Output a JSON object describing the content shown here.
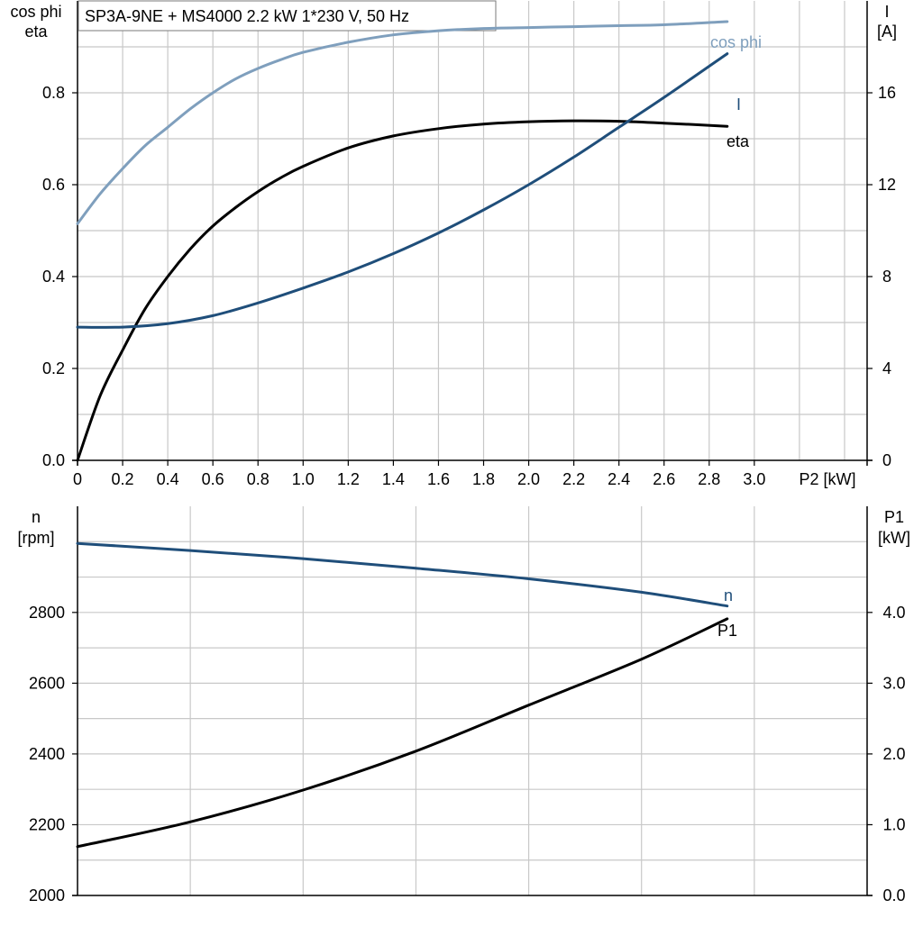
{
  "chart_data": [
    {
      "type": "line",
      "title": "SP3A-9NE + MS4000   2.2 kW   1*230 V, 50 Hz",
      "xlabel": "P2 [kW]",
      "ylabel_left": [
        "cos phi",
        "eta"
      ],
      "ylabel_right": [
        "I",
        "[A]"
      ],
      "xlim": [
        0,
        3.5
      ],
      "xticks": [
        0,
        0.2,
        0.4,
        0.6,
        0.8,
        1.0,
        1.2,
        1.4,
        1.6,
        1.8,
        2.0,
        2.2,
        2.4,
        2.6,
        2.8,
        3.0
      ],
      "xtick_labels": [
        "0",
        "0.2",
        "0.4",
        "0.6",
        "0.8",
        "1.0",
        "1.2",
        "1.4",
        "1.6",
        "1.8",
        "2.0",
        "2.2",
        "2.4",
        "2.6",
        "2.8",
        "3.0"
      ],
      "ylim_left": [
        0,
        1.0
      ],
      "yticks_left": [
        0.0,
        0.2,
        0.4,
        0.6,
        0.8
      ],
      "ytick_labels_left": [
        "0.0",
        "0.2",
        "0.4",
        "0.6",
        "0.8"
      ],
      "ylim_right": [
        0,
        20
      ],
      "yticks_right": [
        0,
        4,
        8,
        12,
        16
      ],
      "ytick_labels_right": [
        "0",
        "4",
        "8",
        "12",
        "16"
      ],
      "grid": true,
      "series": [
        {
          "name": "cos phi",
          "axis": "left",
          "color": "#7f9fbd",
          "points": [
            [
              0,
              0.515
            ],
            [
              0.1,
              0.58
            ],
            [
              0.2,
              0.635
            ],
            [
              0.3,
              0.685
            ],
            [
              0.4,
              0.725
            ],
            [
              0.5,
              0.765
            ],
            [
              0.6,
              0.8
            ],
            [
              0.7,
              0.83
            ],
            [
              0.8,
              0.853
            ],
            [
              0.9,
              0.872
            ],
            [
              1.0,
              0.888
            ],
            [
              1.2,
              0.91
            ],
            [
              1.4,
              0.926
            ],
            [
              1.6,
              0.935
            ],
            [
              1.8,
              0.94
            ],
            [
              2.0,
              0.942
            ],
            [
              2.2,
              0.944
            ],
            [
              2.4,
              0.946
            ],
            [
              2.6,
              0.948
            ],
            [
              2.88,
              0.955
            ]
          ]
        },
        {
          "name": "eta",
          "axis": "left",
          "color": "#000000",
          "points": [
            [
              0,
              0.0
            ],
            [
              0.1,
              0.14
            ],
            [
              0.2,
              0.24
            ],
            [
              0.3,
              0.33
            ],
            [
              0.4,
              0.4
            ],
            [
              0.5,
              0.46
            ],
            [
              0.6,
              0.51
            ],
            [
              0.7,
              0.55
            ],
            [
              0.8,
              0.585
            ],
            [
              0.9,
              0.615
            ],
            [
              1.0,
              0.64
            ],
            [
              1.2,
              0.68
            ],
            [
              1.4,
              0.706
            ],
            [
              1.6,
              0.722
            ],
            [
              1.8,
              0.732
            ],
            [
              2.0,
              0.737
            ],
            [
              2.2,
              0.739
            ],
            [
              2.4,
              0.738
            ],
            [
              2.6,
              0.734
            ],
            [
              2.88,
              0.727
            ]
          ]
        },
        {
          "name": "I",
          "axis": "right",
          "color": "#1f4e7a",
          "points": [
            [
              0,
              5.8
            ],
            [
              0.2,
              5.8
            ],
            [
              0.4,
              5.95
            ],
            [
              0.6,
              6.3
            ],
            [
              0.8,
              6.85
            ],
            [
              1.0,
              7.5
            ],
            [
              1.2,
              8.2
            ],
            [
              1.4,
              9.0
            ],
            [
              1.6,
              9.9
            ],
            [
              1.8,
              10.9
            ],
            [
              2.0,
              12.0
            ],
            [
              2.2,
              13.2
            ],
            [
              2.4,
              14.5
            ],
            [
              2.6,
              15.8
            ],
            [
              2.88,
              17.7
            ]
          ]
        }
      ]
    },
    {
      "type": "line",
      "xlim": [
        0,
        3.5
      ],
      "xticks": [
        0,
        0.5,
        1.0,
        1.5,
        2.0,
        2.5,
        3.0
      ],
      "ylabel_left": [
        "n",
        "[rpm]"
      ],
      "ylabel_right": [
        "P1",
        "[kW]"
      ],
      "ylim_left": [
        2000,
        3100
      ],
      "yticks_left": [
        2000,
        2200,
        2400,
        2600,
        2800
      ],
      "ytick_labels_left": [
        "2000",
        "2200",
        "2400",
        "2600",
        "2800"
      ],
      "ylim_right": [
        0,
        5.5
      ],
      "yticks_right": [
        0,
        1,
        2,
        3,
        4
      ],
      "ytick_labels_right": [
        "0.0",
        "1.0",
        "2.0",
        "3.0",
        "4.0"
      ],
      "grid": true,
      "series": [
        {
          "name": "n",
          "axis": "left",
          "color": "#1f4e7a",
          "points": [
            [
              0,
              2995
            ],
            [
              0.5,
              2975
            ],
            [
              1.0,
              2952
            ],
            [
              1.5,
              2925
            ],
            [
              2.0,
              2895
            ],
            [
              2.5,
              2857
            ],
            [
              2.88,
              2818
            ]
          ]
        },
        {
          "name": "P1",
          "axis": "right",
          "color": "#000000",
          "points": [
            [
              0,
              0.69
            ],
            [
              0.5,
              1.04
            ],
            [
              1.0,
              1.49
            ],
            [
              1.5,
              2.04
            ],
            [
              2.0,
              2.69
            ],
            [
              2.5,
              3.34
            ],
            [
              2.88,
              3.91
            ]
          ]
        }
      ]
    }
  ]
}
